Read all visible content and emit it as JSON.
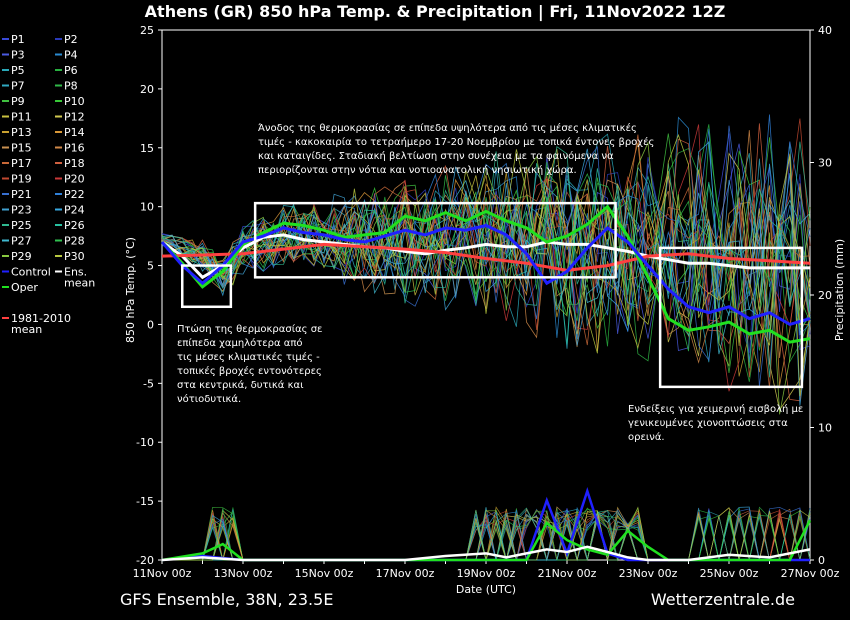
{
  "header": {
    "title": "Athens  (GR)  850 hPa Temp. & Precipitation | Fri, 11Nov2022 12Z"
  },
  "footer": {
    "left": "GFS Ensemble, 38N, 23.5E",
    "right": "Wetterzentrale.de"
  },
  "chart_data": {
    "type": "line",
    "title": "Athens  (GR)  850 hPa Temp. & Precipitation | Fri, 11Nov2022 12Z",
    "xlabel": "Date (UTC)",
    "ylabel": "850 hPa Temp. (°C)",
    "y2label": "Precipitation (mm)",
    "ylim": [
      -20,
      25
    ],
    "y2lim": [
      0,
      40
    ],
    "yticks": [
      "25",
      "20",
      "15",
      "10",
      "5",
      "0",
      "-5",
      "-10",
      "-15",
      "-20"
    ],
    "y2ticks": [
      "40",
      "30",
      "20",
      "10",
      "0"
    ],
    "x_start": "11Nov 00z",
    "x_end": "27Nov 00z",
    "xticks": [
      "11Nov 00z",
      "13Nov 00z",
      "15Nov 00z",
      "17Nov 00z",
      "19Nov 00z",
      "21Nov 00z",
      "23Nov 00z",
      "25Nov 00z",
      "27Nov 00z"
    ],
    "grid": false,
    "legend_position": "left",
    "legend": [
      {
        "name": "P1",
        "color": "#3a4ad8"
      },
      {
        "name": "P2",
        "color": "#2a3ab8"
      },
      {
        "name": "P3",
        "color": "#4a5ae0"
      },
      {
        "name": "P4",
        "color": "#2a8ad0"
      },
      {
        "name": "P5",
        "color": "#2aa8b8"
      },
      {
        "name": "P6",
        "color": "#28b040"
      },
      {
        "name": "P7",
        "color": "#30a8c0"
      },
      {
        "name": "P8",
        "color": "#30b848"
      },
      {
        "name": "P9",
        "color": "#40c040"
      },
      {
        "name": "P10",
        "color": "#38c838"
      },
      {
        "name": "P11",
        "color": "#c8c040"
      },
      {
        "name": "P12",
        "color": "#d0c850"
      },
      {
        "name": "P13",
        "color": "#c8a030"
      },
      {
        "name": "P14",
        "color": "#d89838"
      },
      {
        "name": "P15",
        "color": "#c89050"
      },
      {
        "name": "P16",
        "color": "#d08848"
      },
      {
        "name": "P17",
        "color": "#c86838"
      },
      {
        "name": "P18",
        "color": "#d06040"
      },
      {
        "name": "P19",
        "color": "#c04830"
      },
      {
        "name": "P20",
        "color": "#c83838"
      },
      {
        "name": "P21",
        "color": "#3870d0"
      },
      {
        "name": "P22",
        "color": "#3080d8"
      },
      {
        "name": "P23",
        "color": "#40a0d0"
      },
      {
        "name": "P24",
        "color": "#38a8e0"
      },
      {
        "name": "P25",
        "color": "#30b890"
      },
      {
        "name": "P26",
        "color": "#28c0a0"
      },
      {
        "name": "P27",
        "color": "#40b8d0"
      },
      {
        "name": "P28",
        "color": "#30c050"
      },
      {
        "name": "P29",
        "color": "#88c840"
      },
      {
        "name": "P30",
        "color": "#b8c840"
      },
      {
        "name": "Control",
        "color": "#2020ff"
      },
      {
        "name": "Ens. mean",
        "color": "#ffffff"
      },
      {
        "name": "Oper",
        "color": "#20e020"
      },
      {
        "name": "1981-2010 mean",
        "color": "#ff4040"
      }
    ],
    "day_grid": [
      0,
      1,
      2,
      3,
      4,
      5,
      6,
      7,
      8,
      9,
      10,
      11,
      12,
      13,
      14,
      15,
      16
    ],
    "ensemble_temp": [
      [
        0,
        7.2
      ],
      [
        1,
        5.8
      ],
      [
        1.5,
        4.0
      ],
      [
        2,
        6.5
      ],
      [
        3,
        7.5
      ],
      [
        4,
        7.6
      ],
      [
        5,
        7.3
      ],
      [
        6,
        7.0
      ],
      [
        7,
        7.2
      ],
      [
        8,
        7.6
      ],
      [
        9,
        7.2
      ],
      [
        10,
        6.6
      ],
      [
        11,
        6.8
      ],
      [
        12,
        7.0
      ],
      [
        13,
        6.8
      ],
      [
        14,
        5.8
      ],
      [
        15,
        5.0
      ],
      [
        16,
        4.8
      ]
    ],
    "series": [
      {
        "name": "Ens. mean",
        "color": "#ffffff",
        "values": [
          [
            0,
            7.0
          ],
          [
            0.5,
            5.8
          ],
          [
            1,
            4.0
          ],
          [
            1.5,
            5.0
          ],
          [
            2,
            6.5
          ],
          [
            2.5,
            7.4
          ],
          [
            3,
            7.6
          ],
          [
            3.5,
            7.2
          ],
          [
            4,
            7.0
          ],
          [
            4.5,
            6.8
          ],
          [
            5,
            6.6
          ],
          [
            5.5,
            6.5
          ],
          [
            6,
            6.2
          ],
          [
            6.5,
            6.0
          ],
          [
            7,
            6.3
          ],
          [
            7.5,
            6.5
          ],
          [
            8,
            6.8
          ],
          [
            8.5,
            6.6
          ],
          [
            9,
            6.6
          ],
          [
            9.5,
            7.0
          ],
          [
            10,
            6.8
          ],
          [
            10.5,
            6.8
          ],
          [
            11,
            6.5
          ],
          [
            11.5,
            6.2
          ],
          [
            12,
            5.8
          ],
          [
            12.5,
            5.5
          ],
          [
            13,
            5.2
          ],
          [
            13.5,
            5.2
          ],
          [
            14,
            5.0
          ],
          [
            14.5,
            4.8
          ],
          [
            15,
            4.8
          ],
          [
            15.5,
            4.8
          ],
          [
            16,
            4.8
          ]
        ]
      },
      {
        "name": "1981-2010 mean",
        "color": "#ff4040",
        "values": [
          [
            0,
            5.8
          ],
          [
            1,
            5.9
          ],
          [
            2,
            6.0
          ],
          [
            3,
            6.4
          ],
          [
            4,
            6.8
          ],
          [
            5,
            6.6
          ],
          [
            6,
            6.4
          ],
          [
            7,
            6.1
          ],
          [
            8,
            5.6
          ],
          [
            9,
            5.2
          ],
          [
            10,
            4.6
          ],
          [
            11,
            5.0
          ],
          [
            12,
            5.8
          ],
          [
            13,
            6.0
          ],
          [
            14,
            5.6
          ],
          [
            15,
            5.4
          ],
          [
            16,
            5.2
          ]
        ]
      },
      {
        "name": "Oper",
        "color": "#20e020",
        "values": [
          [
            0,
            7.0
          ],
          [
            0.5,
            5.2
          ],
          [
            1,
            3.2
          ],
          [
            1.5,
            4.5
          ],
          [
            2,
            6.8
          ],
          [
            2.5,
            7.8
          ],
          [
            3,
            8.6
          ],
          [
            3.5,
            8.4
          ],
          [
            4,
            8.0
          ],
          [
            4.5,
            7.4
          ],
          [
            5,
            7.6
          ],
          [
            5.5,
            7.8
          ],
          [
            6,
            9.2
          ],
          [
            6.5,
            8.8
          ],
          [
            7,
            9.5
          ],
          [
            7.5,
            8.8
          ],
          [
            8,
            9.6
          ],
          [
            8.5,
            8.8
          ],
          [
            9,
            8.2
          ],
          [
            9.5,
            7.0
          ],
          [
            10,
            7.5
          ],
          [
            10.5,
            8.5
          ],
          [
            11,
            10.0
          ],
          [
            11.5,
            7.5
          ],
          [
            12,
            4.0
          ],
          [
            12.5,
            0.5
          ],
          [
            13,
            -0.5
          ],
          [
            13.5,
            -0.2
          ],
          [
            14,
            0.2
          ],
          [
            14.5,
            -0.8
          ],
          [
            15,
            -0.5
          ],
          [
            15.5,
            -1.5
          ],
          [
            16,
            -1.2
          ]
        ]
      },
      {
        "name": "Control",
        "color": "#2020ff",
        "values": [
          [
            0,
            7.0
          ],
          [
            0.5,
            5.0
          ],
          [
            1,
            3.5
          ],
          [
            1.5,
            5.0
          ],
          [
            2,
            7.0
          ],
          [
            2.5,
            7.5
          ],
          [
            3,
            8.2
          ],
          [
            3.5,
            7.8
          ],
          [
            4,
            7.6
          ],
          [
            4.5,
            7.2
          ],
          [
            5,
            7.0
          ],
          [
            5.5,
            7.5
          ],
          [
            6,
            8.0
          ],
          [
            6.5,
            7.6
          ],
          [
            7,
            8.2
          ],
          [
            7.5,
            8.0
          ],
          [
            8,
            8.4
          ],
          [
            8.5,
            7.6
          ],
          [
            9,
            6.0
          ],
          [
            9.5,
            3.5
          ],
          [
            10,
            4.5
          ],
          [
            10.5,
            6.5
          ],
          [
            11,
            8.2
          ],
          [
            11.5,
            7.0
          ],
          [
            12,
            5.0
          ],
          [
            12.5,
            3.0
          ],
          [
            13,
            1.5
          ],
          [
            13.5,
            1.0
          ],
          [
            14,
            1.5
          ],
          [
            14.5,
            0.5
          ],
          [
            15,
            1.0
          ],
          [
            15.5,
            0.0
          ],
          [
            16,
            0.5
          ]
        ]
      }
    ],
    "precip_ens_mean": [
      [
        0,
        0
      ],
      [
        1,
        0.2
      ],
      [
        2,
        0
      ],
      [
        3,
        0
      ],
      [
        4,
        0
      ],
      [
        5,
        0
      ],
      [
        6,
        0
      ],
      [
        7,
        0.3
      ],
      [
        8,
        0.5
      ],
      [
        8.5,
        0.2
      ],
      [
        9,
        0.5
      ],
      [
        9.5,
        0.8
      ],
      [
        10,
        0.6
      ],
      [
        10.5,
        1.0
      ],
      [
        11,
        0.6
      ],
      [
        11.5,
        0.2
      ],
      [
        12,
        0
      ],
      [
        13,
        0
      ],
      [
        14,
        0.4
      ],
      [
        15,
        0.2
      ],
      [
        16,
        0.8
      ]
    ],
    "precip_oper": [
      [
        0,
        0
      ],
      [
        1,
        0.5
      ],
      [
        1.5,
        1.2
      ],
      [
        2,
        0
      ],
      [
        5,
        0
      ],
      [
        8,
        0
      ],
      [
        9,
        0
      ],
      [
        9.5,
        2.8
      ],
      [
        10,
        1.5
      ],
      [
        10.5,
        0.8
      ],
      [
        11,
        0.4
      ],
      [
        11.5,
        2.2
      ],
      [
        12,
        1.0
      ],
      [
        12.5,
        0
      ],
      [
        14,
        0
      ],
      [
        15,
        0
      ],
      [
        15.5,
        0
      ],
      [
        16,
        3.0
      ]
    ],
    "precip_control": [
      [
        0,
        0
      ],
      [
        1,
        0.3
      ],
      [
        2,
        0
      ],
      [
        8,
        0
      ],
      [
        9,
        0
      ],
      [
        9.5,
        4.5
      ],
      [
        10,
        0.5
      ],
      [
        10.5,
        5.2
      ],
      [
        11,
        0.5
      ],
      [
        11.5,
        0
      ],
      [
        16,
        0
      ]
    ],
    "annotations": [
      {
        "text_lines": [
          "Άνοδος της θερμοκρασίας σε επίπεδα υψηλότερα από τις μέσες κλιματικές",
          "τιμές - κακοκαιρία το τετραήμερο 17-20 Νοεμβρίου με τοπικά έντονες βροχές",
          "και καταιγίδες. Σταδιακή βελτίωση στην συνέχεια με τα φαινόμενα να",
          "περιορίζονται στην νότια και νοτιοανατολική νησιωτική χώρα."
        ]
      },
      {
        "text_lines": [
          "Πτώση της θερμοκρασίας σε",
          "επίπεδα χαμηλότερα από",
          "τις μέσες κλιματικές τιμές -",
          "τοπικές βροχές εντονότερες",
          "στα κεντρικά, δυτικά και",
          "νότιοδυτικά."
        ]
      },
      {
        "text_lines": [
          "Ενδείξεις για χειμερινή εισβολή με",
          "γενικευμένες χιονοπτώσεις στα",
          "ορεινά."
        ]
      }
    ],
    "boxes": [
      {
        "x0": 0.5,
        "x1": 1.7,
        "y0": 1.5,
        "y1": 5.0
      },
      {
        "x0": 2.3,
        "x1": 11.2,
        "y0": 4.0,
        "y1": 10.3
      },
      {
        "x0": 12.3,
        "x1": 15.8,
        "y0": -5.3,
        "y1": 6.5
      }
    ]
  }
}
